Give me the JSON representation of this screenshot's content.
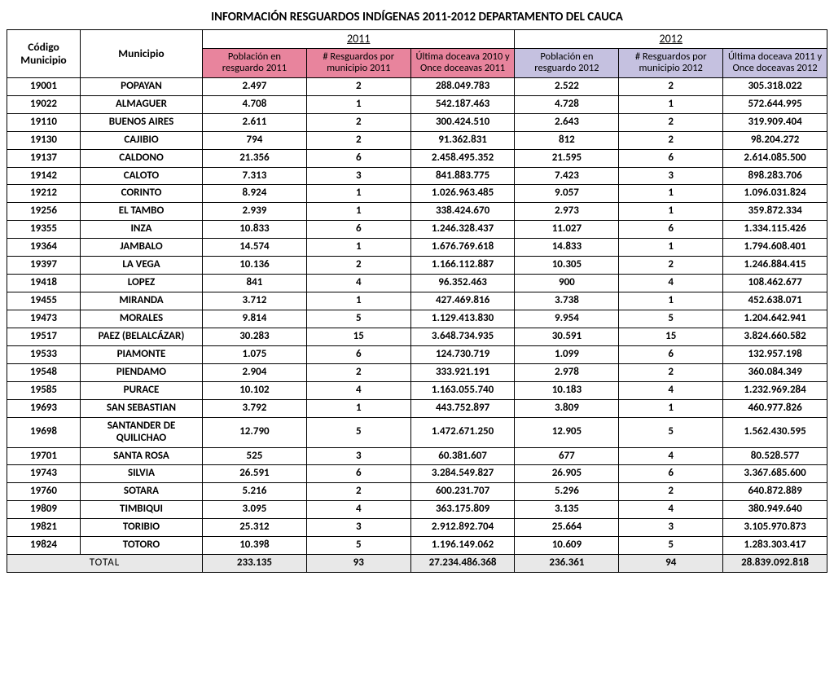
{
  "title": "INFORMACIÓN RESGUARDOS INDÍGENAS 2011-2012 DEPARTAMENTO DEL CAUCA",
  "headers": {
    "codigo": "Código Municipio",
    "municipio": "Municipio",
    "y2011": "2011",
    "y2012": "2012",
    "pob2011": "Población en resguardo 2011",
    "res2011": "# Resguardos por municipio 2011",
    "doc2011": "Última doceava 2010 y Once doceavas 2011",
    "pob2012": "Población en resguardo 2012",
    "res2012": "# Resguardos por municipio 2012",
    "doc2012": "Última doceava 2011 y Once doceavas 2012"
  },
  "rows": [
    {
      "code": "19001",
      "name": "POPAYAN",
      "p1": "2.497",
      "r1": "2",
      "d1": "288.049.783",
      "p2": "2.522",
      "r2": "2",
      "d2": "305.318.022"
    },
    {
      "code": "19022",
      "name": "ALMAGUER",
      "p1": "4.708",
      "r1": "1",
      "d1": "542.187.463",
      "p2": "4.728",
      "r2": "1",
      "d2": "572.644.995"
    },
    {
      "code": "19110",
      "name": "BUENOS AIRES",
      "p1": "2.611",
      "r1": "2",
      "d1": "300.424.510",
      "p2": "2.643",
      "r2": "2",
      "d2": "319.909.404"
    },
    {
      "code": "19130",
      "name": "CAJIBIO",
      "p1": "794",
      "r1": "2",
      "d1": "91.362.831",
      "p2": "812",
      "r2": "2",
      "d2": "98.204.272"
    },
    {
      "code": "19137",
      "name": "CALDONO",
      "p1": "21.356",
      "r1": "6",
      "d1": "2.458.495.352",
      "p2": "21.595",
      "r2": "6",
      "d2": "2.614.085.500"
    },
    {
      "code": "19142",
      "name": "CALOTO",
      "p1": "7.313",
      "r1": "3",
      "d1": "841.883.775",
      "p2": "7.423",
      "r2": "3",
      "d2": "898.283.706"
    },
    {
      "code": "19212",
      "name": "CORINTO",
      "p1": "8.924",
      "r1": "1",
      "d1": "1.026.963.485",
      "p2": "9.057",
      "r2": "1",
      "d2": "1.096.031.824"
    },
    {
      "code": "19256",
      "name": "EL TAMBO",
      "p1": "2.939",
      "r1": "1",
      "d1": "338.424.670",
      "p2": "2.973",
      "r2": "1",
      "d2": "359.872.334"
    },
    {
      "code": "19355",
      "name": "INZA",
      "p1": "10.833",
      "r1": "6",
      "d1": "1.246.328.437",
      "p2": "11.027",
      "r2": "6",
      "d2": "1.334.115.426"
    },
    {
      "code": "19364",
      "name": "JAMBALO",
      "p1": "14.574",
      "r1": "1",
      "d1": "1.676.769.618",
      "p2": "14.833",
      "r2": "1",
      "d2": "1.794.608.401"
    },
    {
      "code": "19397",
      "name": "LA VEGA",
      "p1": "10.136",
      "r1": "2",
      "d1": "1.166.112.887",
      "p2": "10.305",
      "r2": "2",
      "d2": "1.246.884.415"
    },
    {
      "code": "19418",
      "name": "LOPEZ",
      "p1": "841",
      "r1": "4",
      "d1": "96.352.463",
      "p2": "900",
      "r2": "4",
      "d2": "108.462.677"
    },
    {
      "code": "19455",
      "name": "MIRANDA",
      "p1": "3.712",
      "r1": "1",
      "d1": "427.469.816",
      "p2": "3.738",
      "r2": "1",
      "d2": "452.638.071"
    },
    {
      "code": "19473",
      "name": "MORALES",
      "p1": "9.814",
      "r1": "5",
      "d1": "1.129.413.830",
      "p2": "9.954",
      "r2": "5",
      "d2": "1.204.642.941"
    },
    {
      "code": "19517",
      "name": "PAEZ (BELALCÁZAR)",
      "p1": "30.283",
      "r1": "15",
      "d1": "3.648.734.935",
      "p2": "30.591",
      "r2": "15",
      "d2": "3.824.660.582"
    },
    {
      "code": "19533",
      "name": "PIAMONTE",
      "p1": "1.075",
      "r1": "6",
      "d1": "124.730.719",
      "p2": "1.099",
      "r2": "6",
      "d2": "132.957.198"
    },
    {
      "code": "19548",
      "name": "PIENDAMO",
      "p1": "2.904",
      "r1": "2",
      "d1": "333.921.191",
      "p2": "2.978",
      "r2": "2",
      "d2": "360.084.349"
    },
    {
      "code": "19585",
      "name": "PURACE",
      "p1": "10.102",
      "r1": "4",
      "d1": "1.163.055.740",
      "p2": "10.183",
      "r2": "4",
      "d2": "1.232.969.284"
    },
    {
      "code": "19693",
      "name": "SAN SEBASTIAN",
      "p1": "3.792",
      "r1": "1",
      "d1": "443.752.897",
      "p2": "3.809",
      "r2": "1",
      "d2": "460.977.826"
    },
    {
      "code": "19698",
      "name": "SANTANDER DE QUILICHAO",
      "p1": "12.790",
      "r1": "5",
      "d1": "1.472.671.250",
      "p2": "12.905",
      "r2": "5",
      "d2": "1.562.430.595"
    },
    {
      "code": "19701",
      "name": "SANTA ROSA",
      "p1": "525",
      "r1": "3",
      "d1": "60.381.607",
      "p2": "677",
      "r2": "4",
      "d2": "80.528.577"
    },
    {
      "code": "19743",
      "name": "SILVIA",
      "p1": "26.591",
      "r1": "6",
      "d1": "3.284.549.827",
      "p2": "26.905",
      "r2": "6",
      "d2": "3.367.685.600"
    },
    {
      "code": "19760",
      "name": "SOTARA",
      "p1": "5.216",
      "r1": "2",
      "d1": "600.231.707",
      "p2": "5.296",
      "r2": "2",
      "d2": "640.872.889"
    },
    {
      "code": "19809",
      "name": "TIMBIQUI",
      "p1": "3.095",
      "r1": "4",
      "d1": "363.175.809",
      "p2": "3.135",
      "r2": "4",
      "d2": "380.949.640"
    },
    {
      "code": "19821",
      "name": "TORIBIO",
      "p1": "25.312",
      "r1": "3",
      "d1": "2.912.892.704",
      "p2": "25.664",
      "r2": "3",
      "d2": "3.105.970.873"
    },
    {
      "code": "19824",
      "name": "TOTORO",
      "p1": "10.398",
      "r1": "5",
      "d1": "1.196.149.062",
      "p2": "10.609",
      "r2": "5",
      "d2": "1.283.303.417"
    }
  ],
  "total": {
    "label": "TOTAL",
    "p1": "233.135",
    "r1": "93",
    "d1": "27.234.486.368",
    "p2": "236.361",
    "r2": "94",
    "d2": "28.839.092.818"
  },
  "colors": {
    "header2011": "#e8849d",
    "header2012": "#c5c1e0",
    "totalBg": "#e8e8e8",
    "border": "#000000"
  }
}
